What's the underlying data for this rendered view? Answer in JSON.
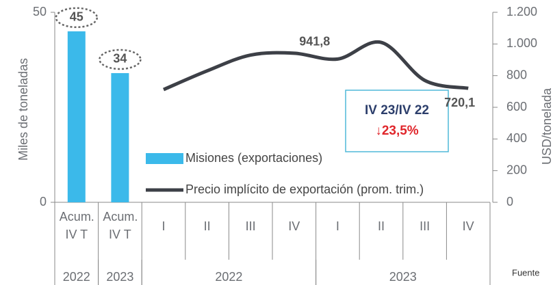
{
  "chart_data": {
    "type": "bar_line",
    "categories": [
      "Acum. IV T",
      "Acum. IV T",
      "I",
      "II",
      "III",
      "IV",
      "I",
      "II",
      "III",
      "IV"
    ],
    "years": [
      "2022",
      "2023",
      "2022",
      "2022",
      "2022",
      "2022",
      "2023",
      "2023",
      "2023",
      "2023"
    ],
    "ylabel": "Miles de toneladas",
    "y2label": "USD/tonelada",
    "ylim": [
      0,
      50
    ],
    "yticks": [
      0,
      50
    ],
    "y2lim": [
      0,
      1200
    ],
    "y2ticks": [
      0,
      200,
      400,
      600,
      800,
      {
        "value": 1000,
        "label": "1.000"
      },
      {
        "value": 1200,
        "label": "1.200"
      }
    ],
    "series": [
      {
        "name": "Misiones (exportaciones)",
        "type": "bar",
        "color": "#3bb9ea",
        "values": [
          45,
          34,
          null,
          null,
          null,
          null,
          null,
          null,
          null,
          null
        ],
        "value_labels": [
          "45",
          "34",
          null,
          null,
          null,
          null,
          null,
          null,
          null,
          null
        ]
      },
      {
        "name": "Precio implícito de exportación (prom. trim.)",
        "type": "line",
        "axis": "y2",
        "color": "#3d4047",
        "values": [
          null,
          null,
          712,
          830,
          930,
          941.8,
          905,
          1010,
          770,
          720.1
        ],
        "value_labels": [
          null,
          null,
          null,
          null,
          null,
          "941,8",
          null,
          null,
          null,
          "720,1"
        ]
      }
    ],
    "annotation": {
      "title": "IV 23/IV 22",
      "text": "↓23,5%"
    },
    "source": "Fuente"
  }
}
